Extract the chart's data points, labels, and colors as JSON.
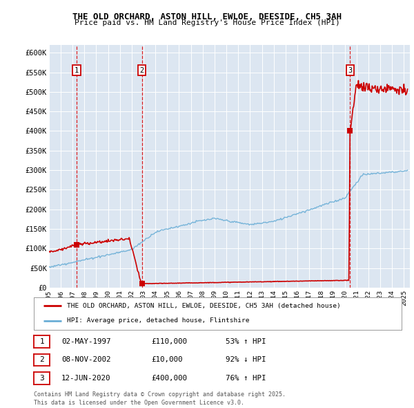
{
  "title_line1": "THE OLD ORCHARD, ASTON HILL, EWLOE, DEESIDE, CH5 3AH",
  "title_line2": "Price paid vs. HM Land Registry's House Price Index (HPI)",
  "ylim": [
    0,
    620000
  ],
  "xlim_start": 1995.0,
  "xlim_end": 2025.5,
  "yticks": [
    0,
    50000,
    100000,
    150000,
    200000,
    250000,
    300000,
    350000,
    400000,
    450000,
    500000,
    550000,
    600000
  ],
  "ytick_labels": [
    "£0",
    "£50K",
    "£100K",
    "£150K",
    "£200K",
    "£250K",
    "£300K",
    "£350K",
    "£400K",
    "£450K",
    "£500K",
    "£550K",
    "£600K"
  ],
  "plot_bg_color": "#dce6f1",
  "grid_color": "#ffffff",
  "red_line_color": "#cc0000",
  "blue_line_color": "#6aaed6",
  "marker_color": "#cc0000",
  "dashed_color": "#dd0000",
  "sale1_x": 1997.34,
  "sale1_y": 110000,
  "sale1_label": "1",
  "sale2_x": 2002.86,
  "sale2_y": 10000,
  "sale2_label": "2",
  "sale3_x": 2020.45,
  "sale3_y": 400000,
  "sale3_label": "3",
  "legend_line1": "THE OLD ORCHARD, ASTON HILL, EWLOE, DEESIDE, CH5 3AH (detached house)",
  "legend_line2": "HPI: Average price, detached house, Flintshire",
  "transaction1_num": "1",
  "transaction1_date": "02-MAY-1997",
  "transaction1_price": "£110,000",
  "transaction1_hpi": "53% ↑ HPI",
  "transaction2_num": "2",
  "transaction2_date": "08-NOV-2002",
  "transaction2_price": "£10,000",
  "transaction2_hpi": "92% ↓ HPI",
  "transaction3_num": "3",
  "transaction3_date": "12-JUN-2020",
  "transaction3_price": "£400,000",
  "transaction3_hpi": "76% ↑ HPI",
  "footer": "Contains HM Land Registry data © Crown copyright and database right 2025.\nThis data is licensed under the Open Government Licence v3.0."
}
